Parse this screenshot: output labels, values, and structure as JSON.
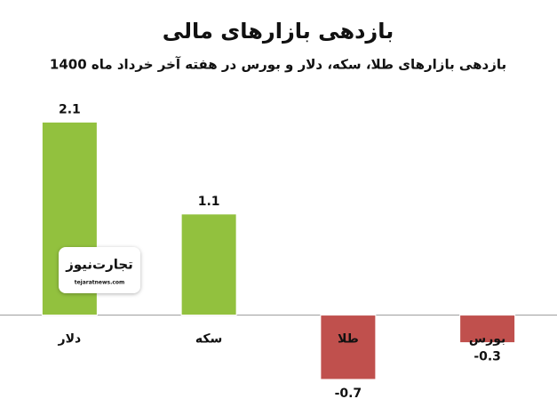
{
  "chart_data": {
    "type": "bar",
    "title": "بازدهی بازارهای مالی",
    "subtitle": "بازدهی بازارهای طلا، سکه، دلار و بورس در هفته آخر خرداد ماه 1400",
    "categories": [
      "دلار",
      "سکه",
      "طلا",
      "بورس"
    ],
    "values": [
      2.1,
      1.1,
      -0.7,
      -0.3
    ],
    "colors": [
      "#92c13e",
      "#92c13e",
      "#c0504d",
      "#c0504d"
    ],
    "ylim": [
      -1,
      2.5
    ],
    "watermark": {
      "name": "تجارت‌نیوز",
      "url": "tejaratnews.com"
    }
  }
}
